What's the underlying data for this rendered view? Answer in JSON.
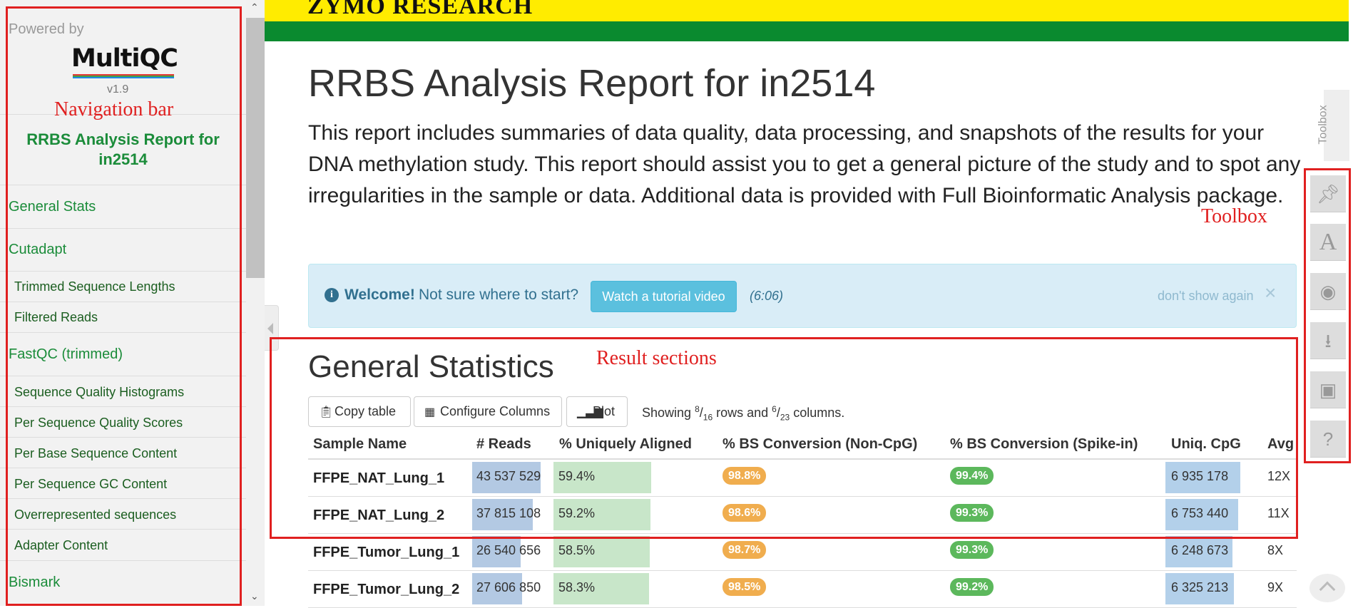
{
  "sidebar": {
    "powered_by": "Powered by",
    "logo_text": "MultiQC",
    "version": "v1.9",
    "report_title": "RRBS Analysis Report for in2514",
    "items": [
      {
        "label": "General Stats"
      },
      {
        "label": "Cutadapt"
      },
      {
        "label": "Trimmed Sequence Lengths"
      },
      {
        "label": "Filtered Reads"
      },
      {
        "label": "FastQC (trimmed)"
      },
      {
        "label": "Sequence Quality Histograms"
      },
      {
        "label": "Per Sequence Quality Scores"
      },
      {
        "label": "Per Base Sequence Content"
      },
      {
        "label": "Per Sequence GC Content"
      },
      {
        "label": "Overrepresented sequences"
      },
      {
        "label": "Adapter Content"
      },
      {
        "label": "Bismark"
      }
    ]
  },
  "header": {
    "brand": "ZYMO RESEARCH",
    "colors": {
      "yellow": "#ffec00",
      "green": "#0a8a2f"
    }
  },
  "main": {
    "title": "RRBS Analysis Report for in2514",
    "intro": "This report includes summaries of data quality, data processing, and snapshots of the results for your DNA methylation study. This report should assist you to get a general picture of the study and to spot any irregularities in the sample or data. Additional data is provided with Full Bioinformatic Analysis package."
  },
  "welcome": {
    "strong": "Welcome!",
    "text": "Not sure where to start?",
    "button": "Watch a tutorial video",
    "duration": "(6:06)",
    "dont_show": "don't show again",
    "close": "×"
  },
  "general_stats": {
    "title": "General Statistics",
    "copy_button": "Copy table",
    "configure_button": "Configure Columns",
    "plot_button": "Plot",
    "showing_prefix": "Showing ",
    "rows_shown": "8",
    "rows_total": "16",
    "rows_mid": " rows and ",
    "cols_shown": "6",
    "cols_total": "23",
    "cols_suffix": " columns.",
    "columns": [
      "Sample Name",
      "# Reads",
      "% Uniquely Aligned",
      "% BS Conversion (Non-CpG)",
      "% BS Conversion (Spike-in)",
      "Uniq. CpG",
      "Avg"
    ],
    "rows": [
      {
        "sample": "FFPE_NAT_Lung_1",
        "reads": "43 537 529",
        "aligned": "59.4%",
        "bs_noncpg": "98.8%",
        "bs_spike": "99.4%",
        "uniq_cpg": "6 935 178",
        "avg": "12X",
        "reads_frac": 0.87,
        "aligned_frac": 0.594,
        "cpg_frac": 0.94
      },
      {
        "sample": "FFPE_NAT_Lung_2",
        "reads": "37 815 108",
        "aligned": "59.2%",
        "bs_noncpg": "98.6%",
        "bs_spike": "99.3%",
        "uniq_cpg": "6 753 440",
        "avg": "11X",
        "reads_frac": 0.77,
        "aligned_frac": 0.592,
        "cpg_frac": 0.91
      },
      {
        "sample": "FFPE_Tumor_Lung_1",
        "reads": "26 540 656",
        "aligned": "58.5%",
        "bs_noncpg": "98.7%",
        "bs_spike": "99.3%",
        "uniq_cpg": "6 248 673",
        "avg": "8X",
        "reads_frac": 0.62,
        "aligned_frac": 0.585,
        "cpg_frac": 0.84
      },
      {
        "sample": "FFPE_Tumor_Lung_2",
        "reads": "27 606 850",
        "aligned": "58.3%",
        "bs_noncpg": "98.5%",
        "bs_spike": "99.2%",
        "uniq_cpg": "6 325 213",
        "avg": "9X",
        "reads_frac": 0.64,
        "aligned_frac": 0.583,
        "cpg_frac": 0.86
      }
    ],
    "colors": {
      "reads_bar": "#b3c9e3",
      "aligned_bar": "#c8e6c9",
      "cpg_bar": "#b3d0ea",
      "orange_pill": "#f0ad4e",
      "green_pill": "#5cb85c"
    }
  },
  "toolbox": {
    "label": "Toolbox",
    "buttons": [
      {
        "icon": "pin-icon"
      },
      {
        "icon": "font-icon"
      },
      {
        "icon": "eye-slash-icon"
      },
      {
        "icon": "download-icon"
      },
      {
        "icon": "save-icon"
      },
      {
        "icon": "help-icon"
      }
    ]
  },
  "annotations": {
    "navigation": "Navigation bar",
    "toolbox": "Toolbox",
    "results": "Result sections",
    "color": "#e02020"
  }
}
